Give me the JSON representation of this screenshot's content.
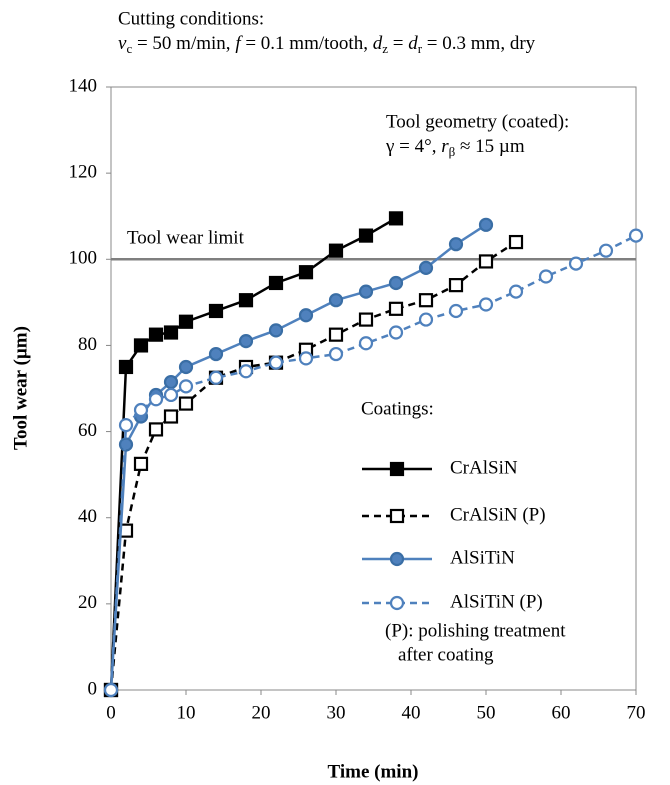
{
  "chart_data": {
    "type": "line",
    "conditions": {
      "title": "Cutting conditions:",
      "parts": [
        "v",
        "c",
        " = 50 m/min, ",
        "f",
        " = 0.1 mm/tooth, ",
        "d",
        "z",
        " = ",
        "d",
        "r",
        " = 0.3 mm, dry"
      ]
    },
    "geometry": {
      "title": "Tool geometry (coated):",
      "parts": [
        "γ = 4°, ",
        "r",
        "β",
        " ≈ 15 µm"
      ]
    },
    "limit": {
      "value": 100,
      "label": "Tool wear limit",
      "color": "#7f7f7f"
    },
    "xlabel": "Time (min)",
    "ylabel": "Tool wear (µm)",
    "xlim": [
      0,
      70
    ],
    "xticks": [
      0,
      10,
      20,
      30,
      40,
      50,
      60,
      70
    ],
    "ylim": [
      0,
      140
    ],
    "yticks": [
      0,
      20,
      40,
      60,
      80,
      100,
      120,
      140
    ],
    "legend_title": "Coatings:",
    "note": [
      "(P): polishing treatment",
      "after coating"
    ],
    "series": [
      {
        "name": "CrAlSiN",
        "color": "#000000",
        "marker": "square",
        "filled": true,
        "dashed": false,
        "x": [
          0,
          2,
          4,
          6,
          8,
          10,
          14,
          18,
          22,
          26,
          30,
          34,
          38
        ],
        "values": [
          0,
          75,
          80,
          82.5,
          83,
          85.5,
          88,
          90.5,
          94.5,
          97,
          102,
          105.5,
          109.5
        ]
      },
      {
        "name": "CrAlSiN  (P)",
        "color": "#000000",
        "marker": "square",
        "filled": false,
        "dashed": true,
        "x": [
          0,
          2,
          4,
          6,
          8,
          10,
          14,
          18,
          22,
          26,
          30,
          34,
          38,
          42,
          46,
          50,
          54
        ],
        "values": [
          0,
          37,
          52.5,
          60.5,
          63.5,
          66.5,
          72.5,
          75,
          76,
          79,
          82.5,
          86,
          88.5,
          90.5,
          94,
          99.5,
          104
        ]
      },
      {
        "name": "AlSiTiN",
        "color": "#4f81bd",
        "marker": "circle",
        "filled": true,
        "dashed": false,
        "x": [
          0,
          2,
          4,
          6,
          8,
          10,
          14,
          18,
          22,
          26,
          30,
          34,
          38,
          42,
          46,
          50
        ],
        "values": [
          0,
          57,
          63.5,
          68.5,
          71.5,
          75,
          78,
          81,
          83.5,
          87,
          90.5,
          92.5,
          94.5,
          98,
          103.5,
          108
        ]
      },
      {
        "name": "AlSiTiN  (P)",
        "color": "#4f81bd",
        "marker": "circle",
        "filled": false,
        "dashed": true,
        "x": [
          0,
          2,
          4,
          6,
          8,
          10,
          14,
          18,
          22,
          26,
          30,
          34,
          38,
          42,
          46,
          50,
          54,
          58,
          62,
          66,
          70
        ],
        "values": [
          0,
          61.5,
          65,
          67.5,
          68.5,
          70.5,
          72.5,
          74,
          76,
          77,
          78,
          80.5,
          83,
          86,
          88,
          89.5,
          92.5,
          96,
          99,
          102,
          105.5
        ]
      }
    ]
  }
}
